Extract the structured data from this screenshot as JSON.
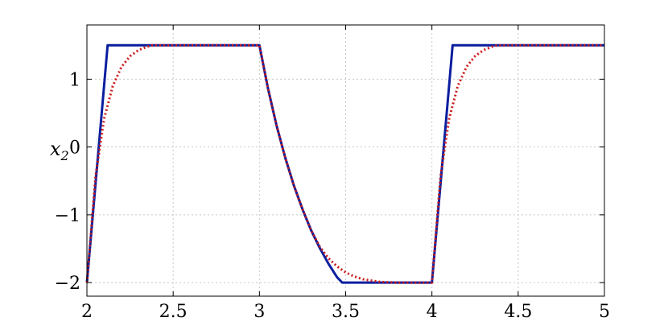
{
  "chart_data": {
    "type": "line",
    "ylabel_main": "x",
    "ylabel_sub": "2",
    "xlim": [
      2,
      5
    ],
    "ylim": [
      -2.2,
      1.8
    ],
    "grid": true,
    "xticks": [
      2,
      2.5,
      3,
      3.5,
      4,
      4.5,
      5
    ],
    "xtick_labels": [
      "2",
      "2.5",
      "3",
      "3.5",
      "4",
      "4.5",
      "5"
    ],
    "yticks": [
      1,
      0,
      -1,
      -2
    ],
    "ytick_labels": [
      "1",
      "0",
      "−1",
      "−2"
    ],
    "series": [
      {
        "color": "#0a1e9e",
        "style": "solid",
        "x": [
          2.0,
          2.12,
          3.0,
          3.05,
          3.1,
          3.15,
          3.2,
          3.25,
          3.3,
          3.35,
          3.4,
          3.45,
          3.48,
          4.0,
          4.12,
          5.0
        ],
        "y": [
          -2.0,
          1.5,
          1.5,
          0.86,
          0.31,
          -0.16,
          -0.57,
          -0.92,
          -1.23,
          -1.49,
          -1.72,
          -1.92,
          -2.0,
          -2.0,
          1.5,
          1.5
        ]
      },
      {
        "color": "#cc1a1a",
        "style": "dotted",
        "x": [
          2.0,
          2.05,
          2.1,
          2.15,
          2.2,
          2.25,
          2.3,
          2.35,
          2.38,
          3.0,
          3.05,
          3.1,
          3.15,
          3.2,
          3.25,
          3.3,
          3.35,
          3.4,
          3.45,
          3.5,
          3.55,
          3.6,
          3.7,
          3.8,
          4.0,
          4.05,
          4.1,
          4.15,
          4.2,
          4.25,
          4.3,
          4.35,
          4.38,
          5.0
        ],
        "y": [
          -2.0,
          -0.43,
          0.42,
          0.9,
          1.18,
          1.34,
          1.43,
          1.48,
          1.5,
          1.5,
          0.86,
          0.31,
          -0.16,
          -0.57,
          -0.92,
          -1.23,
          -1.47,
          -1.64,
          -1.76,
          -1.85,
          -1.91,
          -1.95,
          -1.99,
          -2.0,
          -2.0,
          -0.43,
          0.42,
          0.9,
          1.18,
          1.34,
          1.43,
          1.48,
          1.5,
          1.5
        ]
      }
    ]
  }
}
